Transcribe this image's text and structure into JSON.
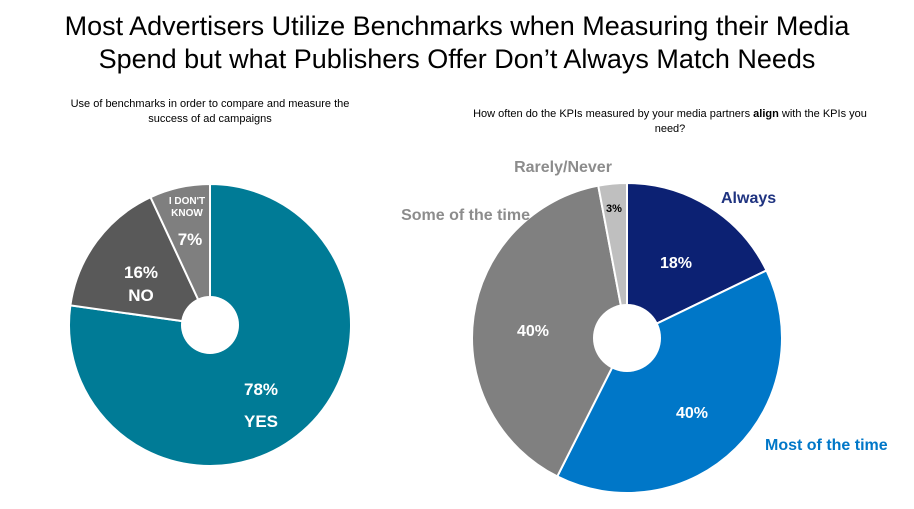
{
  "title": {
    "line1": "Most Advertisers Utilize Benchmarks when Measuring their Media",
    "line2": "Spend but what Publishers Offer Don’t Always Match Needs"
  },
  "chart_data": [
    {
      "type": "pie",
      "title": "Use of benchmarks in order to compare and measure the success of ad campaigns",
      "title_lines": [
        "Use of benchmarks in order to compare and measure the",
        "success of ad campaigns"
      ],
      "slices": [
        {
          "label": "YES",
          "value": 78,
          "value_label": "78%",
          "color": "#007b96"
        },
        {
          "label": "NO",
          "value": 16,
          "value_label": "16%",
          "color": "#595959"
        },
        {
          "label": "I DON'T KNOW",
          "label_lines": [
            "I DON'T",
            "KNOW"
          ],
          "value": 7,
          "value_label": "7%",
          "color": "#7f7f7f"
        }
      ]
    },
    {
      "type": "pie",
      "title_parts": {
        "before": "How often do the KPIs measured by your media partners ",
        "bold": "align",
        "after": " with the KPIs you",
        "line2": "need?"
      },
      "slices": [
        {
          "label": "Always",
          "value": 18,
          "value_label": "18%",
          "color": "#0c2173",
          "label_color": "#1f3380"
        },
        {
          "label": "Most of the time",
          "value": 40,
          "value_label": "40%",
          "color": "#0077c8",
          "label_color": "#0077c8"
        },
        {
          "label": "Some of the time",
          "value": 40,
          "value_label": "40%",
          "color": "#808080",
          "label_color": "#8c8c8c"
        },
        {
          "label": "Rarely/Never",
          "value": 3,
          "value_label": "3%",
          "color": "#bfbfbf",
          "label_color": "#8c8c8c"
        }
      ]
    }
  ]
}
